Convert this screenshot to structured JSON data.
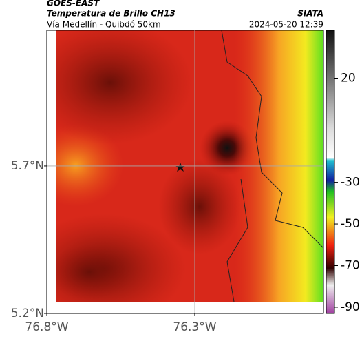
{
  "header": {
    "source": "GOES-EAST",
    "title": "Temperatura de Brillo CH13",
    "brand": "SIATA",
    "subtitle": "Vía Medellín - Quibdó 50km",
    "timestamp": "2024-05-20 12:39"
  },
  "map": {
    "xlim": [
      -76.8,
      -75.865
    ],
    "ylim": [
      5.2,
      6.16
    ],
    "xticks": [
      {
        "value": -76.8,
        "label": "76.8°W"
      },
      {
        "value": -76.3,
        "label": "76.3°W"
      }
    ],
    "yticks": [
      {
        "value": 5.2,
        "label": "5.2°N"
      },
      {
        "value": 5.7,
        "label": "5.7°N"
      }
    ],
    "grid": true
  },
  "colorbar": {
    "clim": [
      -93,
      43
    ],
    "ticks": [
      20,
      -30,
      -50,
      -70,
      -90
    ]
  }
}
